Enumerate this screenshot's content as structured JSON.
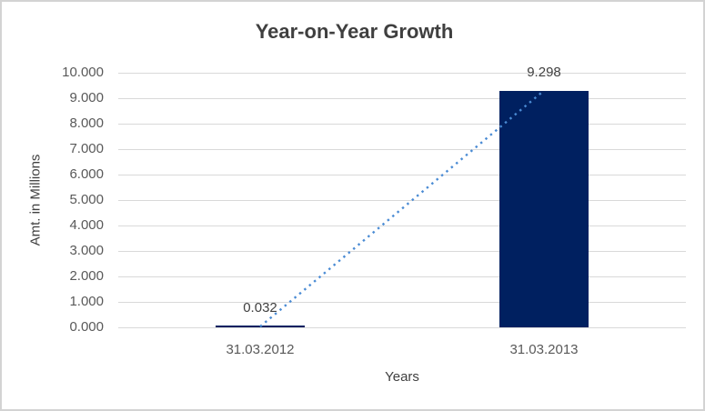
{
  "window": {
    "background_color": "#ffffff",
    "border_color": "#d3d3d3"
  },
  "chart_data": {
    "type": "bar",
    "title": "Year-on-Year Growth",
    "xlabel": "Years",
    "ylabel": "Amt. in Millions",
    "categories": [
      "31.03.2012",
      "31.03.2013"
    ],
    "values": [
      0.032,
      9.298
    ],
    "data_labels": [
      "0.032",
      "9.298"
    ],
    "y_ticks": [
      "0.000",
      "1.000",
      "2.000",
      "3.000",
      "4.000",
      "5.000",
      "6.000",
      "7.000",
      "8.000",
      "9.000",
      "10.000"
    ],
    "ylim": [
      0,
      10
    ],
    "grid": "horizontal",
    "legend": "none",
    "colors": {
      "bar": "#002060",
      "trendline": "#4a8bd4",
      "gridline": "#d9d9d9",
      "tick_text": "#595959",
      "label_text": "#404040",
      "title_text": "#3f3f3f"
    },
    "trendline": {
      "style": "dotted",
      "connects": "bar tops (0.032 to 9.298)"
    }
  }
}
